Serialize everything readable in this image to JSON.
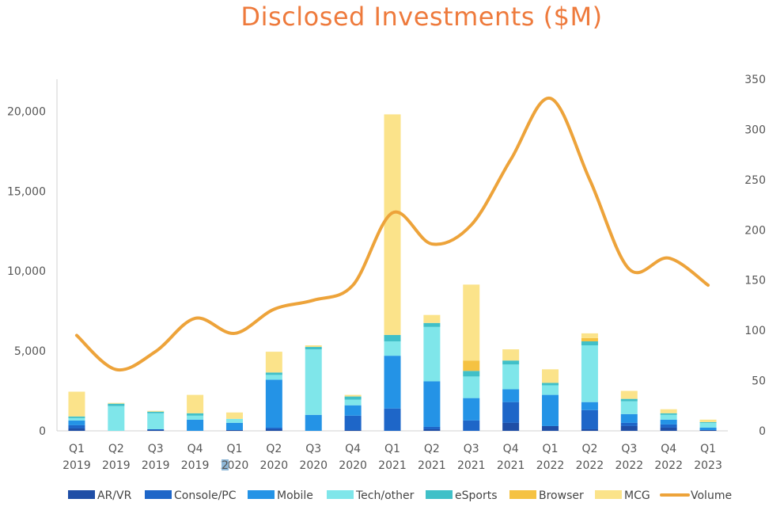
{
  "chart_data": {
    "type": "bar",
    "title": "Disclosed Investments ($M)",
    "categories": [
      [
        "Q1",
        "2019"
      ],
      [
        "Q2",
        "2019"
      ],
      [
        "Q3",
        "2019"
      ],
      [
        "Q4",
        "2019"
      ],
      [
        "Q1",
        "2020"
      ],
      [
        "Q2",
        "2020"
      ],
      [
        "Q3",
        "2020"
      ],
      [
        "Q4",
        "2020"
      ],
      [
        "Q1",
        "2021"
      ],
      [
        "Q2",
        "2021"
      ],
      [
        "Q3",
        "2021"
      ],
      [
        "Q4",
        "2021"
      ],
      [
        "Q1",
        "2022"
      ],
      [
        "Q2",
        "2022"
      ],
      [
        "Q3",
        "2022"
      ],
      [
        "Q4",
        "2022"
      ],
      [
        "Q1",
        "2023"
      ]
    ],
    "stacked": true,
    "series": [
      {
        "name": "AR/VR",
        "color": "#1f4ea6",
        "axis": "left",
        "values": [
          150,
          0,
          50,
          0,
          50,
          100,
          0,
          50,
          0,
          100,
          0,
          500,
          300,
          100,
          300,
          200,
          50
        ]
      },
      {
        "name": "Console/PC",
        "color": "#1e66c8",
        "axis": "left",
        "values": [
          200,
          0,
          50,
          0,
          0,
          100,
          0,
          900,
          1400,
          150,
          650,
          1300,
          0,
          1200,
          200,
          200,
          0
        ]
      },
      {
        "name": "Mobile",
        "color": "#2493e6",
        "axis": "left",
        "values": [
          300,
          0,
          0,
          700,
          450,
          3000,
          1000,
          650,
          3300,
          2850,
          1400,
          800,
          1950,
          500,
          550,
          300,
          150
        ]
      },
      {
        "name": "Tech/other",
        "color": "#7fe6ea",
        "axis": "left",
        "values": [
          150,
          1550,
          1000,
          250,
          250,
          300,
          4100,
          350,
          900,
          3400,
          1350,
          1550,
          600,
          3550,
          800,
          300,
          300
        ]
      },
      {
        "name": "eSports",
        "color": "#40c0c8",
        "axis": "left",
        "values": [
          100,
          150,
          100,
          150,
          0,
          150,
          150,
          200,
          400,
          250,
          350,
          250,
          150,
          250,
          150,
          100,
          50
        ]
      },
      {
        "name": "Browser",
        "color": "#f5c242",
        "axis": "left",
        "values": [
          0,
          0,
          0,
          0,
          0,
          0,
          0,
          0,
          0,
          0,
          650,
          0,
          0,
          200,
          0,
          0,
          0
        ]
      },
      {
        "name": "MCG",
        "color": "#fbe38a",
        "axis": "left",
        "values": [
          1550,
          50,
          50,
          1150,
          400,
          1300,
          100,
          100,
          13800,
          500,
          4750,
          700,
          850,
          300,
          500,
          250,
          150
        ]
      },
      {
        "name": "Volume",
        "color": "#eda33a",
        "type": "line",
        "axis": "right",
        "values": [
          95,
          61,
          79,
          112,
          97,
          121,
          130,
          145,
          217,
          186,
          205,
          270,
          331,
          250,
          161,
          172,
          145
        ]
      }
    ],
    "y_left": {
      "min": 0,
      "max": 22000,
      "ticks": [
        0,
        5000,
        10000,
        15000,
        20000
      ],
      "tick_labels": [
        "0",
        "5,000",
        "10,000",
        "15,000",
        "20,000"
      ]
    },
    "y_right": {
      "min": 0,
      "max": 350,
      "ticks": [
        0,
        50,
        100,
        150,
        200,
        250,
        300,
        350
      ],
      "tick_labels": [
        "0",
        "50",
        "100",
        "150",
        "200",
        "250",
        "300",
        "350"
      ]
    },
    "legend_position": "bottom",
    "grid": false,
    "stray_marker": "2"
  }
}
